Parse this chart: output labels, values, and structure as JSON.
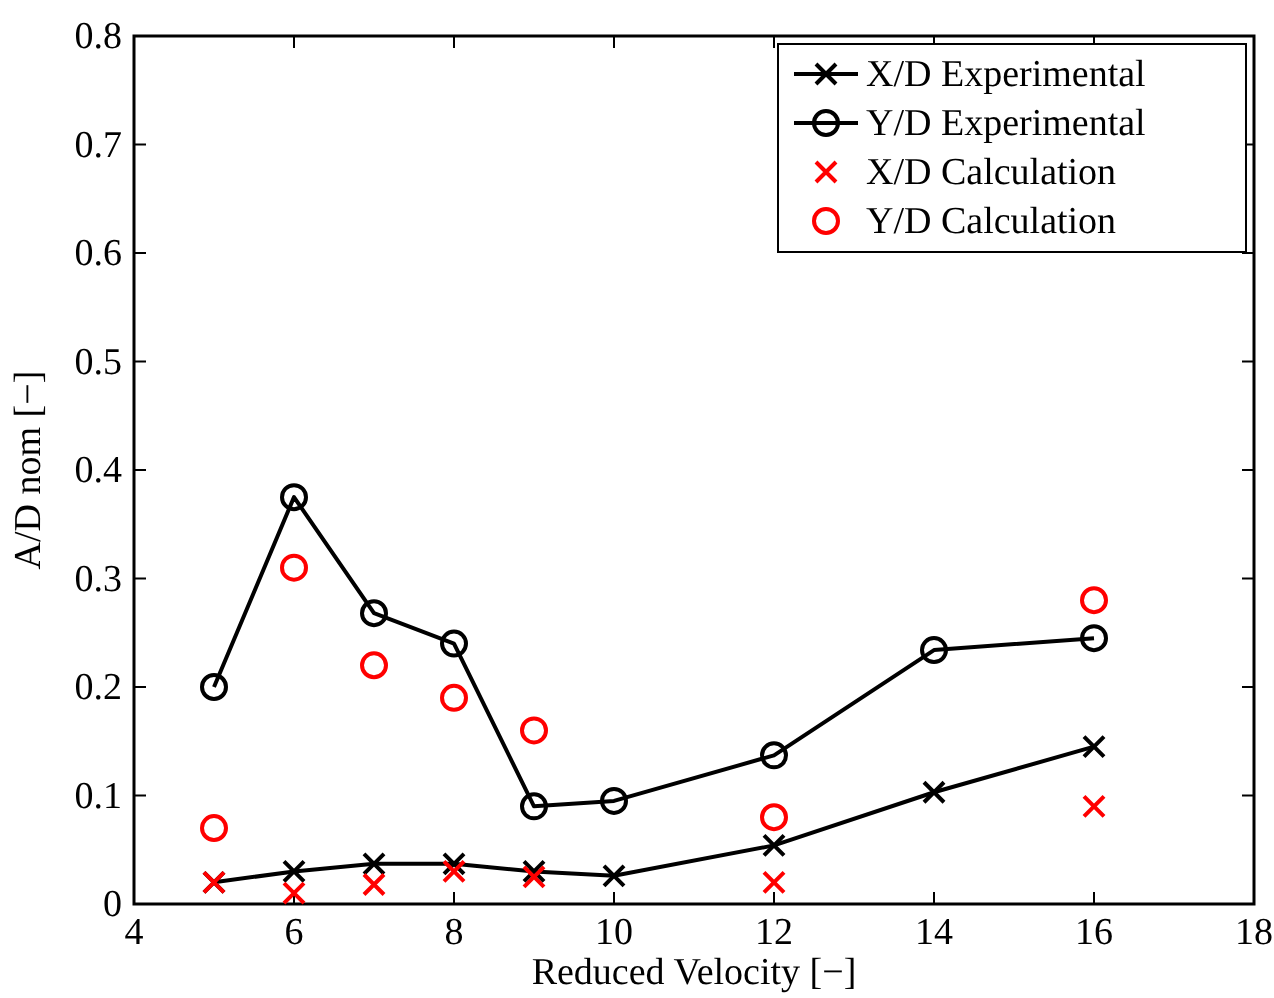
{
  "chart_data": {
    "type": "line",
    "xlabel": "Reduced Velocity [−]",
    "ylabel": "A/D nom [−]",
    "x": [
      5,
      6,
      7,
      8,
      9,
      10,
      12,
      14,
      16
    ],
    "series": [
      {
        "name": "X/D Experimental",
        "color": "#000000",
        "marker": "cross",
        "values": [
          0.02,
          0.03,
          0.037,
          0.037,
          0.03,
          0.026,
          0.054,
          0.103,
          0.145
        ]
      },
      {
        "name": "Y/D Experimental",
        "color": "#000000",
        "marker": "circle",
        "values": [
          0.2,
          0.375,
          0.268,
          0.24,
          0.09,
          0.095,
          0.137,
          0.234,
          0.245
        ]
      },
      {
        "name": "X/D Calculation",
        "type": "scatter",
        "color": "#ff0000",
        "marker": "cross",
        "x": [
          5,
          6,
          7,
          8,
          9,
          12,
          16
        ],
        "values": [
          0.02,
          0.01,
          0.018,
          0.03,
          0.025,
          0.02,
          0.09
        ]
      },
      {
        "name": "Y/D Calculation",
        "type": "scatter",
        "color": "#ff0000",
        "marker": "circle",
        "x": [
          5,
          6,
          7,
          8,
          9,
          12,
          16
        ],
        "values": [
          0.07,
          0.31,
          0.22,
          0.19,
          0.16,
          0.08,
          0.28
        ]
      }
    ],
    "xlim": [
      4,
      18
    ],
    "xticks": [
      4,
      6,
      8,
      10,
      12,
      14,
      16,
      18
    ],
    "ylim": [
      0,
      0.8
    ],
    "yticks": [
      0,
      0.1,
      0.2,
      0.3,
      0.4,
      0.5,
      0.6,
      0.7,
      0.8
    ],
    "grid": false,
    "legend": "top right",
    "line_style": "solid"
  }
}
